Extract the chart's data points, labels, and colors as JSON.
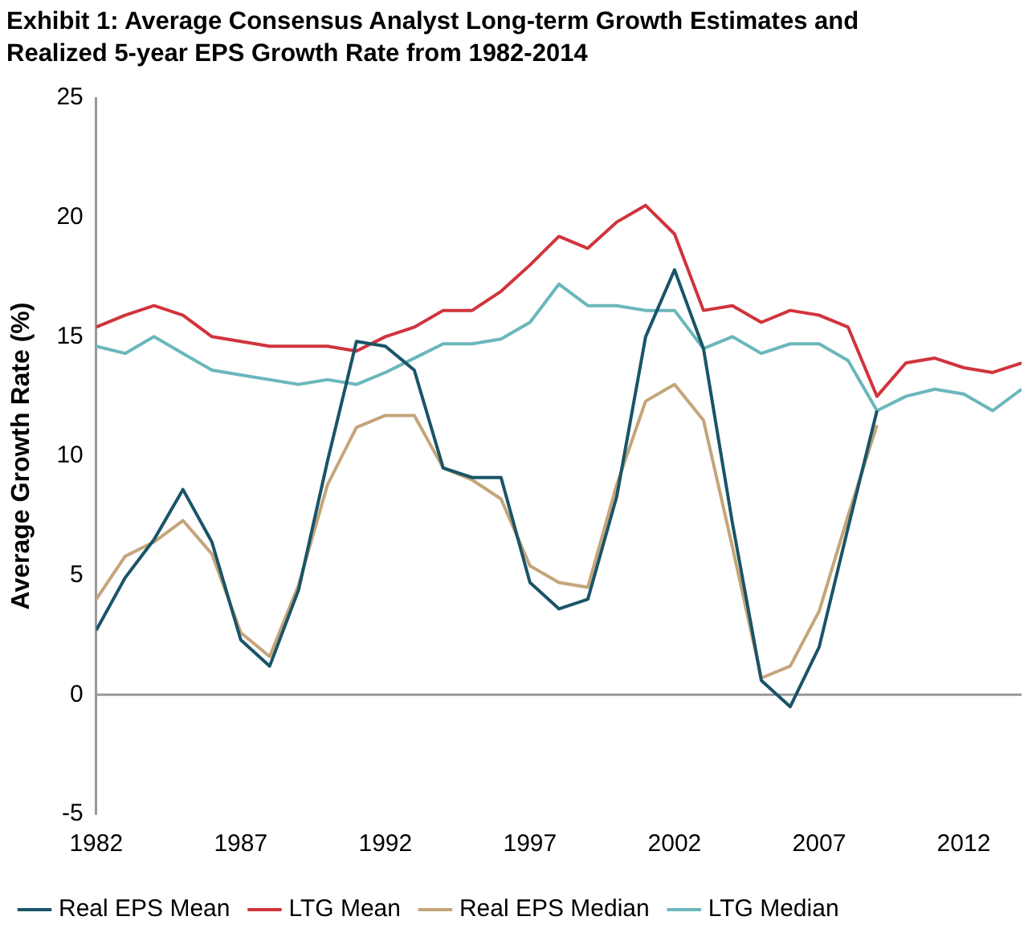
{
  "chart_data": {
    "type": "line",
    "title": "Exhibit 1: Average Consensus Analyst Long-term Growth Estimates and Realized 5-year EPS Growth Rate from 1982-2014",
    "ylabel": "Average Growth Rate (%)",
    "x": [
      1982,
      1983,
      1984,
      1985,
      1986,
      1987,
      1988,
      1989,
      1990,
      1991,
      1992,
      1993,
      1994,
      1995,
      1996,
      1997,
      1998,
      1999,
      2000,
      2001,
      2002,
      2003,
      2004,
      2005,
      2006,
      2007,
      2008,
      2009,
      2010,
      2011,
      2012,
      2013,
      2014
    ],
    "series": [
      {
        "name": "Real EPS Mean",
        "color": "#1a5468",
        "values": [
          2.7,
          4.9,
          6.5,
          8.6,
          6.4,
          2.3,
          1.2,
          4.4,
          9.8,
          14.8,
          14.6,
          13.6,
          9.5,
          9.1,
          9.1,
          4.7,
          3.6,
          4.0,
          8.3,
          15.0,
          17.8,
          14.5,
          7.2,
          0.6,
          -0.5,
          2.0,
          7.0,
          11.9,
          null,
          null,
          null,
          null,
          null
        ]
      },
      {
        "name": "LTG Mean",
        "color": "#d0343c",
        "values": [
          15.4,
          15.9,
          16.3,
          15.9,
          15.0,
          14.8,
          14.6,
          14.6,
          14.6,
          14.4,
          15.0,
          15.4,
          16.1,
          16.1,
          16.9,
          18.0,
          19.2,
          18.7,
          19.8,
          20.5,
          19.3,
          16.1,
          16.3,
          15.6,
          16.1,
          15.9,
          15.4,
          12.5,
          13.9,
          14.1,
          13.7,
          13.5,
          13.9
        ]
      },
      {
        "name": "Real EPS Median",
        "color": "#c4a57a",
        "values": [
          4.0,
          5.8,
          6.4,
          7.3,
          5.9,
          2.6,
          1.6,
          4.6,
          8.8,
          11.2,
          11.7,
          11.7,
          9.5,
          9.0,
          8.2,
          5.4,
          4.7,
          4.5,
          8.8,
          12.3,
          13.0,
          11.5,
          6.2,
          0.7,
          1.2,
          3.5,
          7.5,
          11.3,
          null,
          null,
          null,
          null,
          null
        ]
      },
      {
        "name": "LTG Median",
        "color": "#6bb7bb",
        "values": [
          14.6,
          14.3,
          15.0,
          14.3,
          13.6,
          13.4,
          13.2,
          13.0,
          13.2,
          13.0,
          13.5,
          14.1,
          14.7,
          14.7,
          14.9,
          15.6,
          17.2,
          16.3,
          16.3,
          16.1,
          16.1,
          14.5,
          15.0,
          14.3,
          14.7,
          14.7,
          14.0,
          11.9,
          12.5,
          12.8,
          12.6,
          11.9,
          12.8
        ]
      }
    ],
    "xlim": [
      1982,
      2014
    ],
    "xticks": [
      1982,
      1987,
      1992,
      1997,
      2002,
      2007,
      2012
    ],
    "ylim": [
      -5,
      25
    ],
    "yticks": [
      -5,
      0,
      5,
      10,
      15,
      20,
      25
    ],
    "ref_lines": [
      {
        "axis": "y",
        "value": 0,
        "color": "#999999"
      }
    ],
    "grid": false,
    "legend": "bottom",
    "marker": "none",
    "line_style": "solid"
  }
}
